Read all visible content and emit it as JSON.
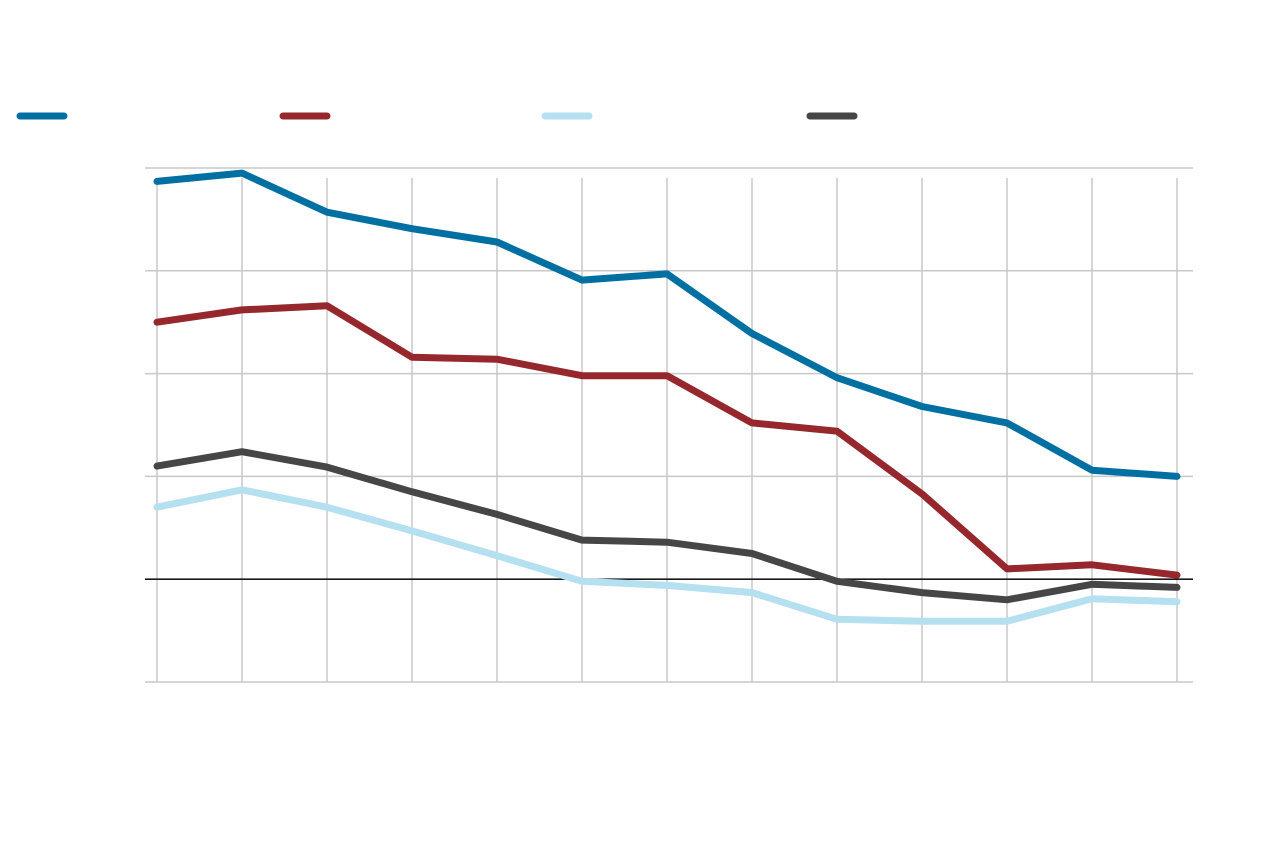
{
  "chart_data": {
    "type": "line",
    "title": "",
    "xlabel": "",
    "ylabel": "",
    "x": [
      1,
      2,
      3,
      4,
      5,
      6,
      7,
      8,
      9,
      10,
      11,
      12,
      13
    ],
    "ylim": [
      -1,
      4
    ],
    "grid": true,
    "legend_position": "top",
    "series": [
      {
        "color": "#0070a3",
        "values": [
          3.87,
          3.95,
          3.57,
          3.41,
          3.28,
          2.91,
          2.97,
          2.39,
          1.96,
          1.68,
          1.52,
          1.06,
          1.0
        ]
      },
      {
        "color": "#96282d",
        "values": [
          2.5,
          2.62,
          2.66,
          2.16,
          2.14,
          1.98,
          1.98,
          1.52,
          1.44,
          0.83,
          0.1,
          0.14,
          0.04
        ]
      },
      {
        "color": "#b5e0f0",
        "values": [
          0.7,
          0.87,
          0.7,
          0.47,
          0.23,
          -0.02,
          -0.06,
          -0.13,
          -0.39,
          -0.41,
          -0.41,
          -0.19,
          -0.22
        ]
      },
      {
        "color": "#464646",
        "values": [
          1.1,
          1.24,
          1.09,
          0.85,
          0.63,
          0.38,
          0.36,
          0.25,
          -0.02,
          -0.13,
          -0.2,
          -0.05,
          -0.08
        ]
      }
    ]
  }
}
